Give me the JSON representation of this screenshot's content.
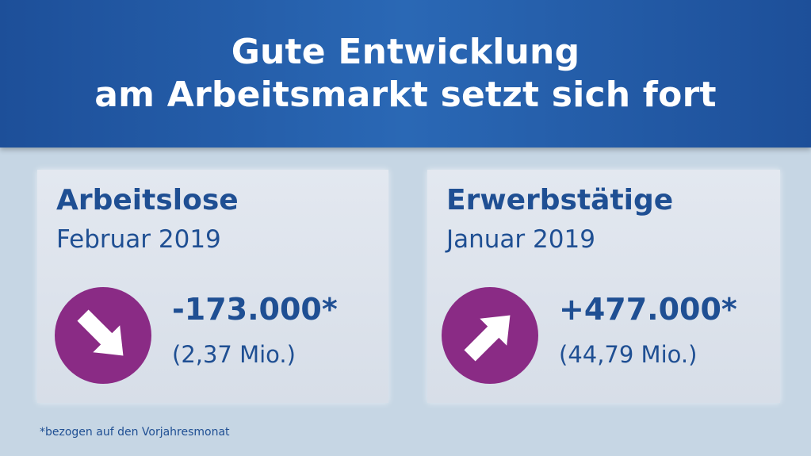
{
  "header": {
    "title_line1": "Gute Entwicklung",
    "title_line2": "am Arbeitsmarkt setzt sich fort"
  },
  "cards": [
    {
      "title": "Arbeitslose",
      "period": "Februar 2019",
      "icon": "arrow-down-right-icon",
      "change": "-173.000*",
      "total": "(2,37 Mio.)"
    },
    {
      "title": "Erwerbstätige",
      "period": "Januar 2019",
      "icon": "arrow-up-right-icon",
      "change": "+477.000*",
      "total": "(44,79 Mio.)"
    }
  ],
  "footnote": "*bezogen auf den Vorjahresmonat",
  "colors": {
    "banner": "#1d4f99",
    "text": "#1f4f93",
    "accent": "#8a2b85",
    "background": "#c6d6e4"
  }
}
